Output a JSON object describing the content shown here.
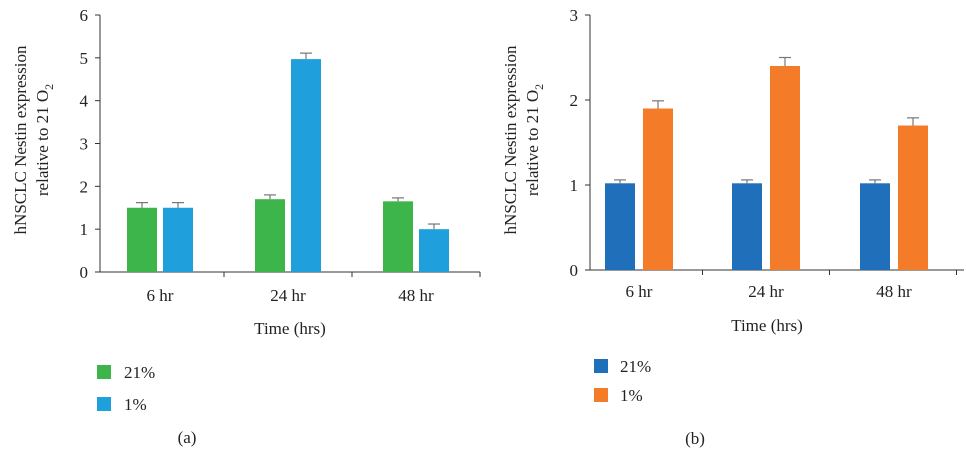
{
  "chart_data": [
    {
      "type": "bar",
      "panel_label": "(a)",
      "xlabel": "Time (hrs)",
      "ylabel_line1": "hNSCLC Nestin expression",
      "ylabel_line2": "relative to 21 O",
      "ylabel_subscript": "2",
      "categories": [
        "6 hr",
        "24 hr",
        "48 hr"
      ],
      "ylim": [
        0,
        6
      ],
      "yticks": [
        0,
        1,
        2,
        3,
        4,
        5,
        6
      ],
      "legend_position": "bottom-left",
      "series": [
        {
          "name": "21%",
          "color": "#3db54a",
          "values": [
            1.5,
            1.7,
            1.65
          ],
          "errors": [
            0.12,
            0.1,
            0.08
          ]
        },
        {
          "name": "1%",
          "color": "#1f9fdb",
          "values": [
            1.5,
            4.97,
            1.0
          ],
          "errors": [
            0.12,
            0.14,
            0.12
          ]
        }
      ]
    },
    {
      "type": "bar",
      "panel_label": "(b)",
      "xlabel": "Time (hrs)",
      "ylabel_line1": "hNSCLC Nestin expression",
      "ylabel_line2": "relative to 21 O",
      "ylabel_subscript": "2",
      "categories": [
        "6 hr",
        "24 hr",
        "48 hr"
      ],
      "ylim": [
        0,
        3
      ],
      "yticks": [
        0,
        1,
        2,
        3
      ],
      "legend_position": "bottom-left",
      "series": [
        {
          "name": "21%",
          "color": "#1f6fba",
          "values": [
            1.02,
            1.02,
            1.02
          ],
          "errors": [
            0.04,
            0.04,
            0.04
          ]
        },
        {
          "name": "1%",
          "color": "#f47b28",
          "values": [
            1.9,
            2.4,
            1.7
          ],
          "errors": [
            0.09,
            0.1,
            0.09
          ]
        }
      ]
    }
  ]
}
